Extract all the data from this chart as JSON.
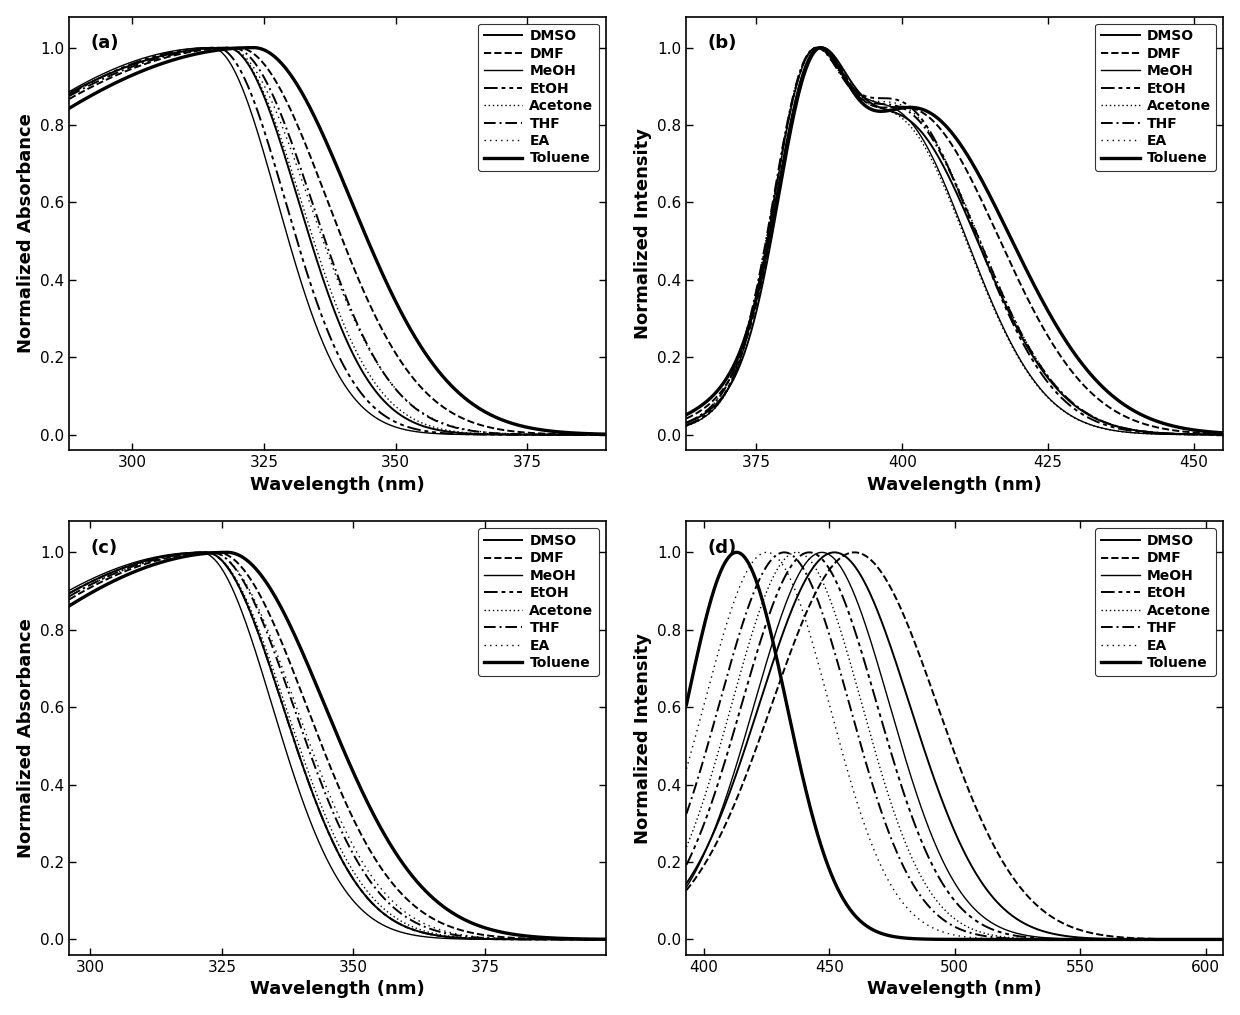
{
  "solvents": [
    "DMSO",
    "DMF",
    "MeOH",
    "EtOH",
    "Acetone",
    "THF",
    "EA",
    "Toluene"
  ],
  "panel_a": {
    "xlabel": "Wavelength (nm)",
    "ylabel": "Normalized Absorbance",
    "label": "(a)",
    "xlim": [
      288,
      390
    ],
    "xticks": [
      300,
      325,
      350,
      375
    ],
    "ylim": [
      -0.04,
      1.08
    ]
  },
  "panel_b": {
    "xlabel": "Wavelength (nm)",
    "ylabel": "Normalized Intensity",
    "label": "(b)",
    "xlim": [
      363,
      455
    ],
    "xticks": [
      375,
      400,
      425,
      450
    ],
    "ylim": [
      -0.04,
      1.08
    ]
  },
  "panel_c": {
    "xlabel": "Wavelength (nm)",
    "ylabel": "Normalized Absorbance",
    "label": "(c)",
    "xlim": [
      296,
      398
    ],
    "xticks": [
      300,
      325,
      350,
      375
    ],
    "ylim": [
      -0.04,
      1.08
    ]
  },
  "panel_d": {
    "xlabel": "Wavelength (nm)",
    "ylabel": "Normalized Intensity",
    "label": "(d)",
    "xlim": [
      393,
      607
    ],
    "xticks": [
      400,
      450,
      500,
      550,
      600
    ],
    "ylim": [
      -0.04,
      1.08
    ]
  }
}
